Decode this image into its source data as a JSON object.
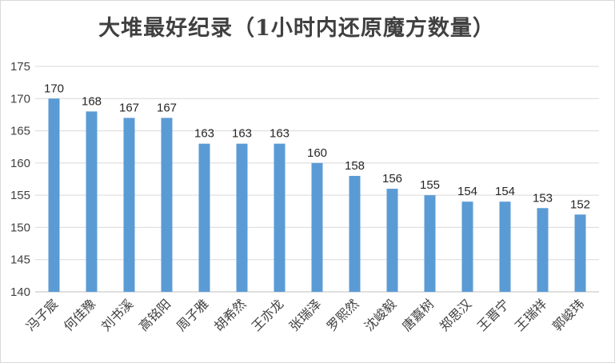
{
  "chart_data": {
    "type": "bar",
    "title": "大堆最好纪录（1小时内还原魔方数量）",
    "categories": [
      "冯子宸",
      "何佳豫",
      "刘书溪",
      "高铭阳",
      "周子雅",
      "胡希然",
      "王亦龙",
      "张瑞泽",
      "罗熙然",
      "沈峻毅",
      "唐嘉树",
      "郑思汉",
      "王晋宁",
      "王瑞祥",
      "郭峻玮"
    ],
    "values": [
      170,
      168,
      167,
      167,
      163,
      163,
      163,
      160,
      158,
      156,
      155,
      154,
      154,
      153,
      152
    ],
    "ylim": [
      140,
      175
    ],
    "yticks": [
      140,
      145,
      150,
      155,
      160,
      165,
      170,
      175
    ],
    "xlabel": "",
    "ylabel": "",
    "grid": true,
    "bar_color": "#5b9bd5"
  }
}
